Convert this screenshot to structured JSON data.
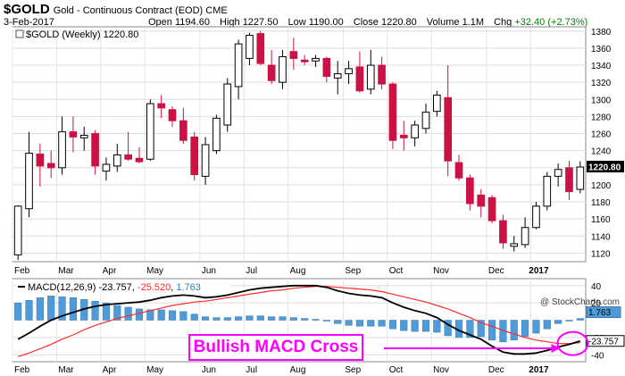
{
  "header": {
    "symbol": "$GOLD",
    "description": "Gold - Continuous Contract (EOD) CME",
    "date": "3-Feb-2017",
    "open_label": "Open",
    "open": "1194.60",
    "high_label": "High",
    "high": "1227.50",
    "low_label": "Low",
    "low": "1190.00",
    "close_label": "Close",
    "close": "1220.80",
    "volume_label": "Volume",
    "volume": "1.1M",
    "chg_label": "Chg",
    "chg": "+32.40 (+2.73%)",
    "chg_color": "#008000"
  },
  "watermark": "@ StockCharts.com",
  "annotation": {
    "text": "Bullish MACD Cross",
    "color": "#ff00ff"
  },
  "chart_data": [
    {
      "type": "candlestick",
      "legend": "$GOLD (Weekly) 1220.80",
      "ylim": [
        1110,
        1385
      ],
      "yticks": [
        1120,
        1140,
        1160,
        1180,
        1200,
        1220,
        1240,
        1260,
        1280,
        1300,
        1320,
        1340,
        1360,
        1380
      ],
      "last_value": "1220.80",
      "up_color": "#ffffff",
      "down_color": "#cc1144",
      "x_labels": [
        {
          "label": "Feb",
          "week": 0
        },
        {
          "label": "Mar",
          "week": 4
        },
        {
          "label": "Apr",
          "week": 8
        },
        {
          "label": "May",
          "week": 12
        },
        {
          "label": "Jun",
          "week": 17
        },
        {
          "label": "Jul",
          "week": 21
        },
        {
          "label": "Aug",
          "week": 25
        },
        {
          "label": "Sep",
          "week": 30
        },
        {
          "label": "Oct",
          "week": 34
        },
        {
          "label": "Nov",
          "week": 38
        },
        {
          "label": "Dec",
          "week": 43
        },
        {
          "label": "2017",
          "week": 47
        }
      ],
      "ohlc": [
        {
          "o": 1118,
          "h": 1176,
          "l": 1112,
          "c": 1175
        },
        {
          "o": 1172,
          "h": 1262,
          "l": 1162,
          "c": 1237
        },
        {
          "o": 1236,
          "h": 1248,
          "l": 1198,
          "c": 1222
        },
        {
          "o": 1225,
          "h": 1240,
          "l": 1208,
          "c": 1220
        },
        {
          "o": 1220,
          "h": 1280,
          "l": 1212,
          "c": 1262
        },
        {
          "o": 1262,
          "h": 1280,
          "l": 1238,
          "c": 1256
        },
        {
          "o": 1255,
          "h": 1268,
          "l": 1240,
          "c": 1258
        },
        {
          "o": 1260,
          "h": 1264,
          "l": 1212,
          "c": 1222
        },
        {
          "o": 1216,
          "h": 1232,
          "l": 1205,
          "c": 1224
        },
        {
          "o": 1222,
          "h": 1248,
          "l": 1215,
          "c": 1235
        },
        {
          "o": 1235,
          "h": 1262,
          "l": 1228,
          "c": 1230
        },
        {
          "o": 1231,
          "h": 1244,
          "l": 1225,
          "c": 1227
        },
        {
          "o": 1230,
          "h": 1300,
          "l": 1228,
          "c": 1295
        },
        {
          "o": 1295,
          "h": 1305,
          "l": 1278,
          "c": 1290
        },
        {
          "o": 1288,
          "h": 1292,
          "l": 1268,
          "c": 1275
        },
        {
          "o": 1275,
          "h": 1290,
          "l": 1248,
          "c": 1252
        },
        {
          "o": 1256,
          "h": 1262,
          "l": 1205,
          "c": 1212
        },
        {
          "o": 1210,
          "h": 1256,
          "l": 1200,
          "c": 1247
        },
        {
          "o": 1240,
          "h": 1282,
          "l": 1236,
          "c": 1278
        },
        {
          "o": 1270,
          "h": 1325,
          "l": 1262,
          "c": 1318
        },
        {
          "o": 1315,
          "h": 1370,
          "l": 1300,
          "c": 1365
        },
        {
          "o": 1348,
          "h": 1378,
          "l": 1340,
          "c": 1375
        },
        {
          "o": 1377,
          "h": 1380,
          "l": 1340,
          "c": 1342
        },
        {
          "o": 1340,
          "h": 1358,
          "l": 1318,
          "c": 1322
        },
        {
          "o": 1320,
          "h": 1358,
          "l": 1312,
          "c": 1350
        },
        {
          "o": 1356,
          "h": 1372,
          "l": 1335,
          "c": 1348
        },
        {
          "o": 1346,
          "h": 1352,
          "l": 1340,
          "c": 1344
        },
        {
          "o": 1345,
          "h": 1352,
          "l": 1338,
          "c": 1348
        },
        {
          "o": 1348,
          "h": 1350,
          "l": 1320,
          "c": 1327
        },
        {
          "o": 1325,
          "h": 1345,
          "l": 1306,
          "c": 1330
        },
        {
          "o": 1330,
          "h": 1345,
          "l": 1318,
          "c": 1336
        },
        {
          "o": 1338,
          "h": 1356,
          "l": 1308,
          "c": 1310
        },
        {
          "o": 1312,
          "h": 1358,
          "l": 1306,
          "c": 1340
        },
        {
          "o": 1340,
          "h": 1350,
          "l": 1312,
          "c": 1318
        },
        {
          "o": 1318,
          "h": 1320,
          "l": 1242,
          "c": 1252
        },
        {
          "o": 1258,
          "h": 1275,
          "l": 1240,
          "c": 1255
        },
        {
          "o": 1255,
          "h": 1275,
          "l": 1245,
          "c": 1270
        },
        {
          "o": 1266,
          "h": 1295,
          "l": 1260,
          "c": 1285
        },
        {
          "o": 1286,
          "h": 1310,
          "l": 1280,
          "c": 1305
        },
        {
          "o": 1302,
          "h": 1340,
          "l": 1210,
          "c": 1228
        },
        {
          "o": 1226,
          "h": 1235,
          "l": 1205,
          "c": 1208
        },
        {
          "o": 1208,
          "h": 1212,
          "l": 1170,
          "c": 1178
        },
        {
          "o": 1188,
          "h": 1195,
          "l": 1162,
          "c": 1175
        },
        {
          "o": 1185,
          "h": 1188,
          "l": 1155,
          "c": 1158
        },
        {
          "o": 1158,
          "h": 1165,
          "l": 1125,
          "c": 1132
        },
        {
          "o": 1128,
          "h": 1140,
          "l": 1122,
          "c": 1131
        },
        {
          "o": 1130,
          "h": 1162,
          "l": 1126,
          "c": 1150
        },
        {
          "o": 1150,
          "h": 1180,
          "l": 1148,
          "c": 1175
        },
        {
          "o": 1175,
          "h": 1215,
          "l": 1170,
          "c": 1210
        },
        {
          "o": 1210,
          "h": 1225,
          "l": 1198,
          "c": 1218
        },
        {
          "o": 1220,
          "h": 1228,
          "l": 1182,
          "c": 1192
        },
        {
          "o": 1194.6,
          "h": 1227.5,
          "l": 1190,
          "c": 1220.8
        }
      ]
    },
    {
      "type": "macd",
      "legend_label": "MACD(12,26,9)",
      "macd_value": "-23.757",
      "signal_value": "-25.520",
      "hist_value": "1.763",
      "macd_color": "#000000",
      "signal_color": "#ff2a2a",
      "hist_color": "#4f9bd9",
      "ylim": [
        -48,
        48
      ],
      "yticks": [
        "40",
        "20",
        "-20",
        "-40"
      ],
      "right_labels": [
        "1.763",
        "-23.757"
      ],
      "macd": [
        -22,
        -15,
        -7,
        0,
        5,
        9,
        13,
        16,
        18,
        19,
        20,
        21,
        23,
        26,
        28,
        29,
        28,
        26,
        27,
        29,
        32,
        35,
        37,
        38,
        39,
        40,
        40,
        40,
        38,
        34,
        31,
        29,
        28,
        26,
        20,
        15,
        11,
        8,
        3,
        -5,
        -12,
        -17,
        -22,
        -30,
        -37,
        -39,
        -39,
        -38,
        -35,
        -31,
        -28,
        -24
      ],
      "signal": [
        -42,
        -38,
        -33,
        -28,
        -22,
        -17,
        -11,
        -6,
        -2,
        2,
        5,
        8,
        11,
        14,
        17,
        19,
        21,
        22,
        24,
        26,
        28,
        30,
        32,
        34,
        35,
        37,
        38,
        39,
        39,
        38,
        37,
        36,
        35,
        33,
        30,
        27,
        24,
        21,
        17,
        13,
        8,
        3,
        -3,
        -7,
        -12,
        -16,
        -20,
        -23,
        -25,
        -27,
        -27,
        -26
      ],
      "histogram": [
        20,
        23,
        26,
        28,
        27,
        26,
        24,
        22,
        20,
        17,
        15,
        13,
        12,
        12,
        11,
        10,
        7,
        4,
        3,
        3,
        4,
        5,
        5,
        4,
        4,
        3,
        2,
        1,
        -1,
        -4,
        -6,
        -7,
        -7,
        -7,
        -10,
        -12,
        -13,
        -13,
        -14,
        -18,
        -20,
        -20,
        -19,
        -23,
        -25,
        -23,
        -19,
        -15,
        -10,
        -4,
        -1,
        2
      ]
    }
  ]
}
